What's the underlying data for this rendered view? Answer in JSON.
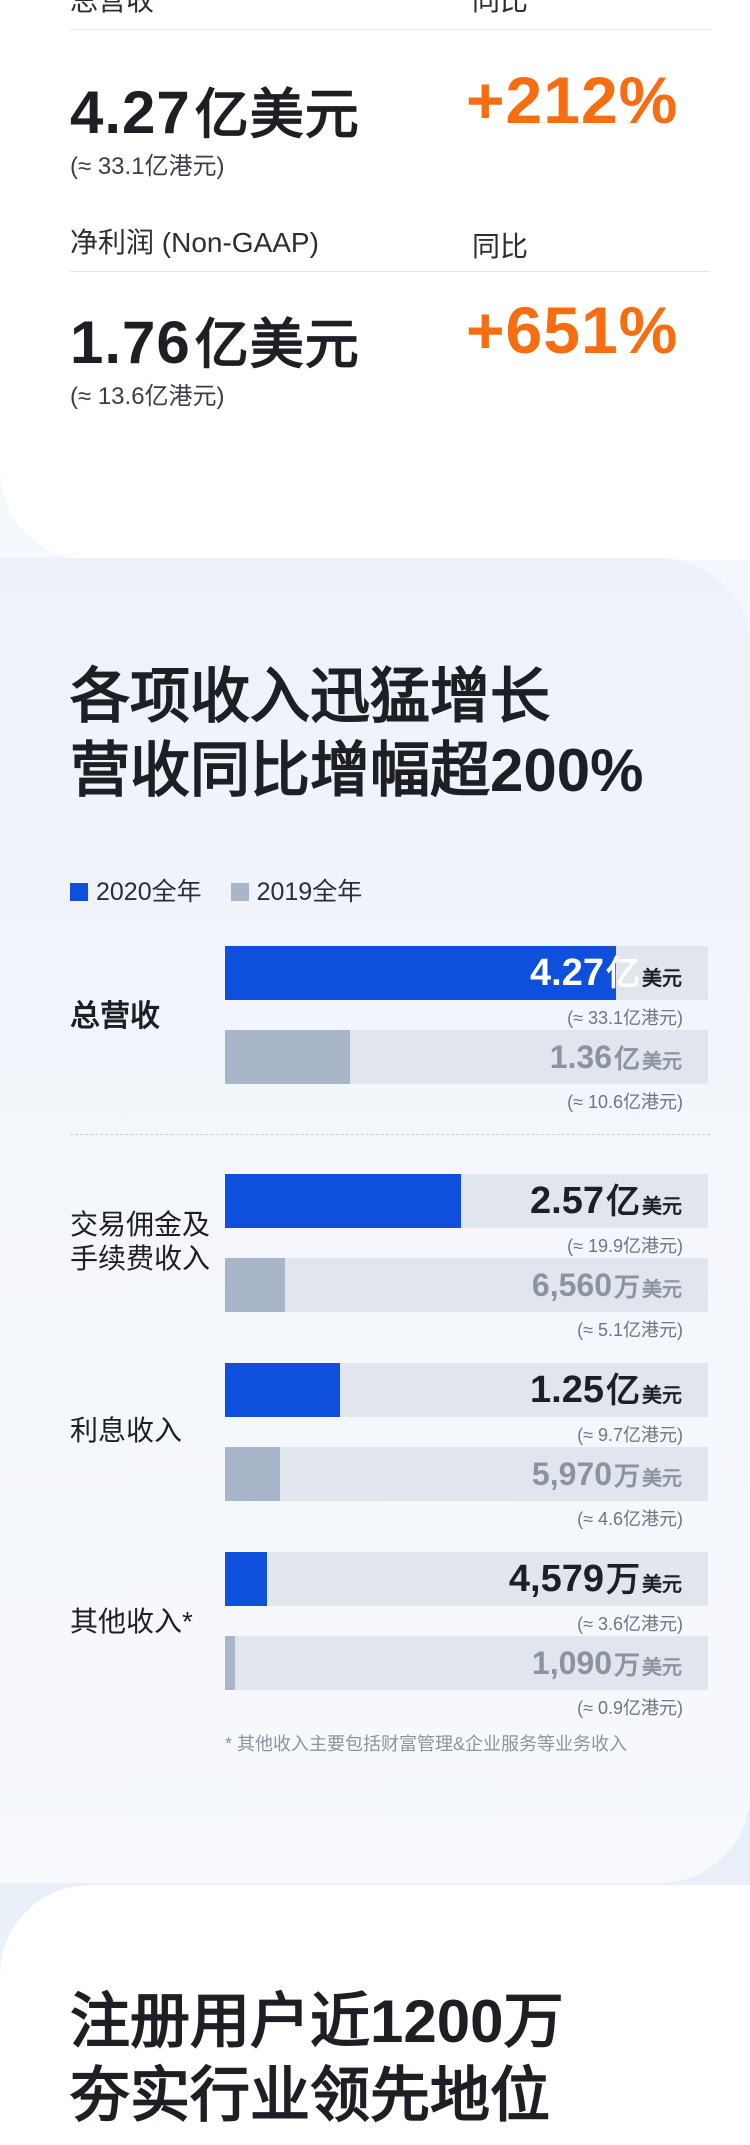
{
  "metrics": [
    {
      "label": "总营收",
      "yoy_label": "同比",
      "value": "4.27",
      "unit": "亿美元",
      "sub": "(≈ 33.1亿港元)",
      "growth": "+212%"
    },
    {
      "label": "净利润 (Non-GAAP)",
      "yoy_label": "同比",
      "value": "1.76",
      "unit": "亿美元",
      "sub": "(≈ 13.6亿港元)",
      "growth": "+651%"
    }
  ],
  "revenue_section": {
    "title_lines": [
      "各项收入迅猛增长",
      "营收同比增幅超200%"
    ],
    "footnote": "* 其他收入主要包括财富管理&企业服务等业务收入"
  },
  "chart_data": {
    "type": "bar",
    "orientation": "horizontal",
    "legend_position": "top-left",
    "unit": "亿美元",
    "categories": [
      "总营收",
      "交易佣金及手续费收入",
      "利息收入",
      "其他收入*"
    ],
    "category_label_lines": [
      [
        "总营收"
      ],
      [
        "交易佣金及",
        "手续费收入"
      ],
      [
        "利息收入"
      ],
      [
        "其他收入*"
      ]
    ],
    "series": [
      {
        "name": "2020全年",
        "color": "#0e4fdc",
        "values": [
          4.27,
          2.57,
          1.25,
          0.4579
        ],
        "labels": [
          {
            "num": "4.27",
            "big": "亿",
            "small": "美元",
            "note": "(≈ 33.1亿港元)"
          },
          {
            "num": "2.57",
            "big": "亿",
            "small": "美元",
            "note": "(≈ 19.9亿港元)"
          },
          {
            "num": "1.25",
            "big": "亿",
            "small": "美元",
            "note": "(≈ 9.7亿港元)"
          },
          {
            "num": "4,579",
            "big": "万",
            "small": "美元",
            "note": "(≈ 3.6亿港元)"
          }
        ]
      },
      {
        "name": "2019全年",
        "color": "#a9b5c8",
        "values": [
          1.36,
          0.656,
          0.597,
          0.109
        ],
        "labels": [
          {
            "num": "1.36",
            "big": "亿",
            "small": "美元",
            "note": "(≈ 10.6亿港元)"
          },
          {
            "num": "6,560",
            "big": "万",
            "small": "美元",
            "note": "(≈ 5.1亿港元)"
          },
          {
            "num": "5,970",
            "big": "万",
            "small": "美元",
            "note": "(≈ 4.6亿港元)"
          },
          {
            "num": "1,090",
            "big": "万",
            "small": "美元",
            "note": "(≈ 0.9亿港元)"
          }
        ]
      }
    ]
  },
  "users_section": {
    "title_lines": [
      "注册用户近1200万",
      "夯实行业领先地位"
    ]
  }
}
